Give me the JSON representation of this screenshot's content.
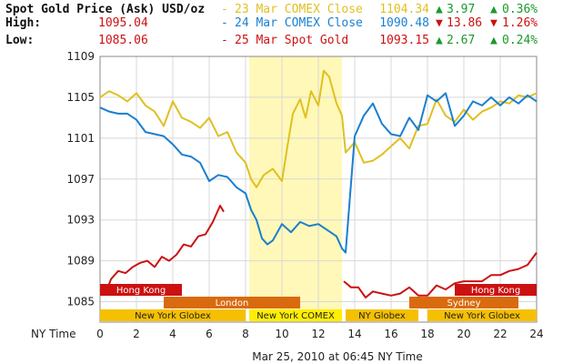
{
  "header": {
    "title": "Spot Gold Price (Ask) USD/oz",
    "high_label": "High:",
    "high_value": "1095.04",
    "low_label": "Low:",
    "low_value": "1085.06",
    "legend": [
      {
        "name": "23 Mar COMEX Close",
        "price": "1104.34",
        "change": "3.97",
        "percent": "0.36%",
        "direction": "up",
        "color": "#e0c020"
      },
      {
        "name": "24 Mar COMEX Close",
        "price": "1090.48",
        "change": "13.86",
        "percent": "1.26%",
        "direction": "down",
        "color": "#1a7fd0"
      },
      {
        "name": "25 Mar Spot Gold",
        "price": "1093.15",
        "change": "2.67",
        "percent": "0.24%",
        "direction": "up",
        "color": "#cc1111"
      }
    ]
  },
  "footer": {
    "timestamp": "Mar 25, 2010 at 06:45 NY Time"
  },
  "colors": {
    "up": "#1a9a2a",
    "down": "#cc1111",
    "highlight": "#fff8b8"
  },
  "chart_data": {
    "type": "line",
    "xlabel": "NY Time",
    "xlim": [
      0,
      24
    ],
    "ylim": [
      1083,
      1109
    ],
    "x_ticks": [
      0,
      2,
      4,
      6,
      8,
      10,
      12,
      14,
      16,
      18,
      20,
      22,
      24
    ],
    "y_ticks": [
      1085,
      1089,
      1093,
      1097,
      1101,
      1105,
      1109
    ],
    "highlight_range": [
      8.2,
      13.3
    ],
    "series": [
      {
        "name": "23 Mar COMEX Close",
        "color": "#e0c020",
        "x": [
          0,
          0.5,
          1,
          1.5,
          2,
          2.5,
          3,
          3.5,
          4,
          4.5,
          5,
          5.5,
          6,
          6.5,
          7,
          7.5,
          8,
          8.3,
          8.6,
          9,
          9.5,
          10,
          10.3,
          10.6,
          11,
          11.3,
          11.6,
          12,
          12.3,
          12.6,
          13,
          13.3,
          13.5,
          14,
          14.5,
          15,
          15.5,
          16,
          16.5,
          17,
          17.5,
          18,
          18.5,
          19,
          19.5,
          20,
          20.5,
          21,
          21.5,
          22,
          22.5,
          23,
          23.5,
          24
        ],
        "y": [
          1105.0,
          1105.6,
          1105.2,
          1104.6,
          1105.4,
          1104.2,
          1103.6,
          1102.2,
          1104.6,
          1103.0,
          1102.6,
          1102.0,
          1103.0,
          1101.2,
          1101.6,
          1099.6,
          1098.6,
          1097.0,
          1096.2,
          1097.4,
          1098.0,
          1096.8,
          1100.2,
          1103.4,
          1104.8,
          1103.0,
          1105.6,
          1104.2,
          1107.6,
          1107.0,
          1104.4,
          1103.2,
          1099.6,
          1100.6,
          1098.6,
          1098.8,
          1099.4,
          1100.2,
          1101.0,
          1100.0,
          1102.2,
          1102.4,
          1104.8,
          1103.2,
          1102.6,
          1103.8,
          1102.8,
          1103.6,
          1104.0,
          1104.6,
          1104.4,
          1105.2,
          1105.0,
          1105.4
        ]
      },
      {
        "name": "24 Mar COMEX Close",
        "color": "#1a7fd0",
        "x": [
          0,
          0.5,
          1,
          1.5,
          2,
          2.5,
          3,
          3.5,
          4,
          4.5,
          5,
          5.5,
          6,
          6.5,
          7,
          7.5,
          8,
          8.3,
          8.6,
          8.9,
          9.2,
          9.5,
          10,
          10.5,
          11,
          11.5,
          12,
          12.5,
          13,
          13.3,
          13.5,
          14,
          14.5,
          15,
          15.5,
          16,
          16.5,
          17,
          17.5,
          18,
          18.5,
          19,
          19.5,
          20,
          20.5,
          21,
          21.5,
          22,
          22.5,
          23,
          23.5,
          24
        ],
        "y": [
          1104.0,
          1103.6,
          1103.4,
          1103.4,
          1102.8,
          1101.6,
          1101.4,
          1101.2,
          1100.4,
          1099.4,
          1099.2,
          1098.6,
          1096.8,
          1097.4,
          1097.2,
          1096.2,
          1095.6,
          1094.0,
          1093.0,
          1091.2,
          1090.6,
          1091.0,
          1092.6,
          1091.8,
          1092.8,
          1092.4,
          1092.6,
          1092.0,
          1091.4,
          1090.2,
          1089.8,
          1101.2,
          1103.2,
          1104.4,
          1102.4,
          1101.4,
          1101.2,
          1103.0,
          1101.8,
          1105.2,
          1104.6,
          1105.4,
          1102.2,
          1103.2,
          1104.6,
          1104.2,
          1105.0,
          1104.2,
          1105.0,
          1104.4,
          1105.2,
          1104.6
        ]
      },
      {
        "name": "25 Mar Spot Gold",
        "color": "#cc1111",
        "x": [
          0,
          0.3,
          0.6,
          1,
          1.4,
          1.8,
          2.2,
          2.6,
          3,
          3.4,
          3.8,
          4.2,
          4.6,
          5,
          5.4,
          5.8,
          6.2,
          6.6,
          6.8
        ],
        "y": [
          1086.2,
          1085.8,
          1087.2,
          1088.0,
          1087.8,
          1088.4,
          1088.8,
          1089.0,
          1088.4,
          1089.4,
          1089.0,
          1089.6,
          1090.6,
          1090.4,
          1091.4,
          1091.6,
          1092.8,
          1094.4,
          1093.8
        ]
      },
      {
        "name": "25 Mar Spot Gold",
        "color": "#cc1111",
        "x": [
          13.4,
          13.8,
          14.2,
          14.6,
          15,
          15.5,
          16,
          16.5,
          17,
          17.5,
          18,
          18.5,
          19,
          19.5,
          20,
          20.5,
          21,
          21.5,
          22,
          22.5,
          23,
          23.5,
          24
        ],
        "y": [
          1087.0,
          1086.4,
          1086.4,
          1085.4,
          1086.0,
          1085.8,
          1085.6,
          1085.8,
          1086.4,
          1085.6,
          1085.6,
          1086.6,
          1086.2,
          1086.8,
          1087.0,
          1087.0,
          1087.0,
          1087.6,
          1087.6,
          1088.0,
          1088.2,
          1088.6,
          1089.8
        ]
      }
    ],
    "sessions": [
      {
        "label": "Hong Kong",
        "start": 0,
        "end": 4.5,
        "row": 0,
        "color": "#cc1111",
        "text_color": "#ffffff"
      },
      {
        "label": "Hong Kong",
        "start": 19.5,
        "end": 24,
        "row": 0,
        "color": "#cc1111",
        "text_color": "#ffffff"
      },
      {
        "label": "London",
        "start": 3.5,
        "end": 11,
        "row": 1,
        "color": "#d96a0e",
        "text_color": "#ffffff"
      },
      {
        "label": "Sydney",
        "start": 17,
        "end": 23,
        "row": 1,
        "color": "#d96a0e",
        "text_color": "#ffffff"
      },
      {
        "label": "New York Globex",
        "start": 0,
        "end": 8,
        "row": 2,
        "color": "#f5c000",
        "text_color": "#222222"
      },
      {
        "label": "New York COMEX",
        "start": 8.2,
        "end": 13.3,
        "row": 2,
        "color": "#ffee00",
        "text_color": "#222222"
      },
      {
        "label": "NY Globex",
        "start": 13.5,
        "end": 17.5,
        "row": 2,
        "color": "#f5c000",
        "text_color": "#222222"
      },
      {
        "label": "New York Globex",
        "start": 18,
        "end": 24,
        "row": 2,
        "color": "#f5c000",
        "text_color": "#222222"
      }
    ]
  }
}
